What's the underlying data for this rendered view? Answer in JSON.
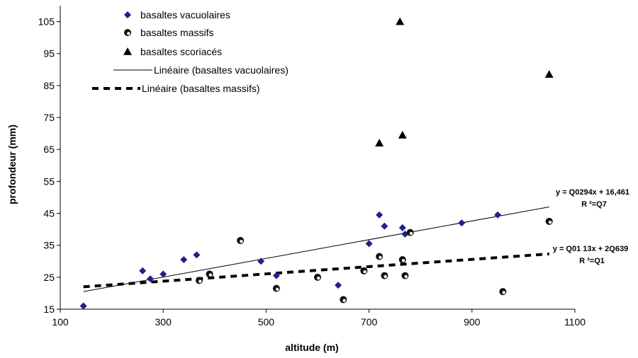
{
  "chart_data": {
    "type": "scatter",
    "xlabel": "altitude (m)",
    "ylabel": "profondeur (mm)",
    "xlim": [
      100,
      1100
    ],
    "ylim": [
      15,
      110
    ],
    "xticks": [
      "100",
      "300",
      "500",
      "700",
      "900",
      "1100"
    ],
    "yticks": [
      "15",
      "25",
      "35",
      "45",
      "55",
      "65",
      "75",
      "85",
      "95",
      "105"
    ],
    "grid": false,
    "legend_position": "top-left",
    "series": [
      {
        "name": "basaltes vacuolaires",
        "marker": "diamond",
        "color": "#1f1f8f",
        "points": [
          [
            145,
            16
          ],
          [
            260,
            27
          ],
          [
            275,
            24.5
          ],
          [
            300,
            26
          ],
          [
            340,
            30.5
          ],
          [
            365,
            32
          ],
          [
            490,
            30
          ],
          [
            520,
            25.5
          ],
          [
            640,
            22.5
          ],
          [
            700,
            35.5
          ],
          [
            720,
            44.5
          ],
          [
            730,
            41
          ],
          [
            765,
            40.5
          ],
          [
            770,
            38.5
          ],
          [
            880,
            42
          ],
          [
            950,
            44.5
          ]
        ]
      },
      {
        "name": "basaltes massifs",
        "marker": "circle",
        "color": "#111111",
        "points": [
          [
            370,
            24
          ],
          [
            390,
            26
          ],
          [
            450,
            36.5
          ],
          [
            520,
            21.5
          ],
          [
            600,
            25
          ],
          [
            650,
            18
          ],
          [
            690,
            27
          ],
          [
            720,
            31.5
          ],
          [
            730,
            25.5
          ],
          [
            765,
            30.5
          ],
          [
            770,
            25.5
          ],
          [
            780,
            39
          ],
          [
            960,
            20.5
          ],
          [
            1050,
            42.5
          ]
        ]
      },
      {
        "name": "basaltes scoriacés",
        "marker": "triangle",
        "color": "#000000",
        "points": [
          [
            720,
            67
          ],
          [
            760,
            105
          ],
          [
            765,
            69.5
          ],
          [
            1050,
            88.5
          ]
        ]
      }
    ],
    "trendlines": [
      {
        "name": "Linéaire (basaltes vacuolaires)",
        "style": "solid",
        "x": [
          145,
          1050
        ],
        "y": [
          20.5,
          47
        ]
      },
      {
        "name": "Linéaire (basaltes massifs)",
        "style": "dashed",
        "x": [
          145,
          1050
        ],
        "y": [
          22,
          32.3
        ]
      }
    ],
    "annotations": [
      {
        "line1": "y = Q0294x + 16,461",
        "line2": "R ²=Q7"
      },
      {
        "line1": "y = Q01 13x + 2Q639",
        "line2": "R ²=Q1"
      }
    ]
  }
}
